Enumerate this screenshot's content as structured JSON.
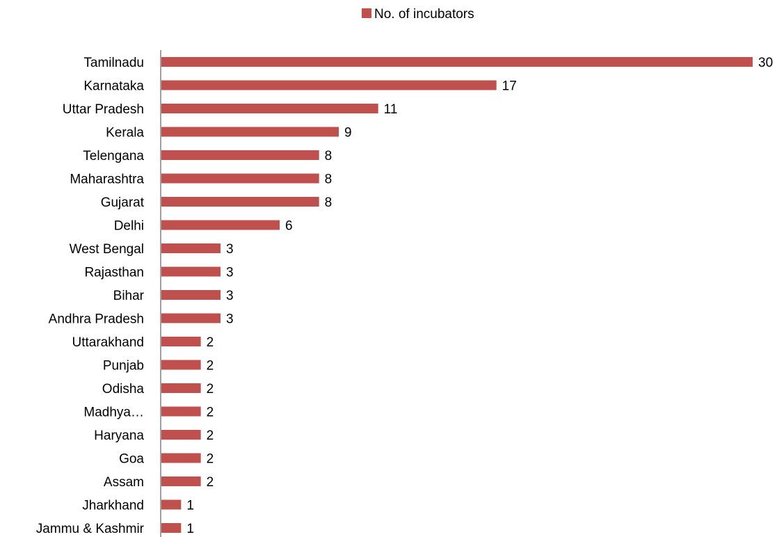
{
  "chart_data": {
    "type": "bar",
    "orientation": "horizontal",
    "categories": [
      "Tamilnadu",
      "Karnataka",
      "Uttar Pradesh",
      "Kerala",
      "Telengana",
      "Maharashtra",
      "Gujarat",
      "Delhi",
      "West Bengal",
      "Rajasthan",
      "Bihar",
      "Andhra Pradesh",
      "Uttarakhand",
      "Punjab",
      "Odisha",
      "Madhya…",
      "Haryana",
      "Goa",
      "Assam",
      "Jharkhand",
      "Jammu & Kashmir"
    ],
    "series": [
      {
        "name": "No. of incubators",
        "values": [
          30,
          17,
          11,
          9,
          8,
          8,
          8,
          6,
          3,
          3,
          3,
          3,
          2,
          2,
          2,
          2,
          2,
          2,
          2,
          1,
          1
        ],
        "color": "#c0504d"
      }
    ],
    "xlim": [
      0,
      30
    ],
    "legend_position": "top",
    "data_labels": true,
    "grid": false
  }
}
